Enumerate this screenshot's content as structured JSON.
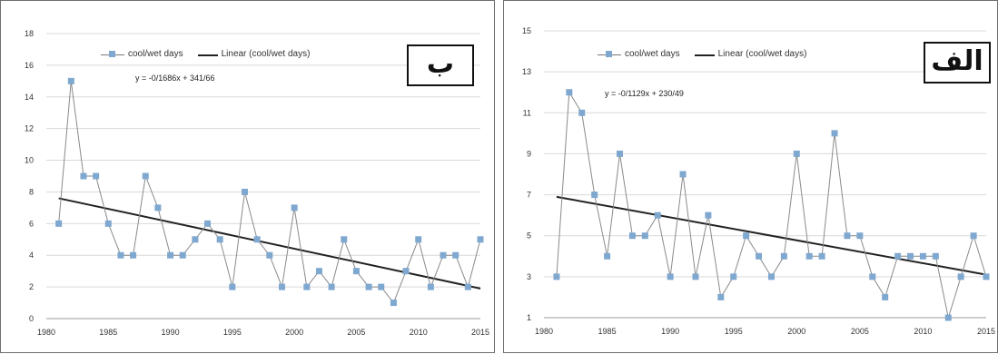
{
  "chart_data": [
    {
      "type": "line",
      "panel_label": "ب",
      "legend": {
        "series_label": "cool/wet days",
        "trend_label": "Linear (cool/wet days)"
      },
      "trendline_equation": "y = -0/1686x + 341/66",
      "xlim": [
        1980,
        2015
      ],
      "ylim": [
        0,
        18
      ],
      "x_ticks": [
        "1980",
        "1985",
        "1990",
        "1995",
        "2000",
        "2005",
        "2010",
        "2015"
      ],
      "y_ticks": [
        "0",
        "2",
        "4",
        "6",
        "8",
        "10",
        "12",
        "14",
        "16",
        "18"
      ],
      "grid": true,
      "series": [
        {
          "x": [
            1981,
            1982,
            1983,
            1984,
            1985,
            1986,
            1987,
            1988,
            1989,
            1990,
            1991,
            1992,
            1993,
            1994,
            1995,
            1996,
            1997,
            1998,
            1999,
            2000,
            2001,
            2002,
            2003,
            2004,
            2005,
            2006,
            2007,
            2008,
            2009,
            2010,
            2011,
            2012,
            2013,
            2014,
            2015
          ],
          "y": [
            6,
            15,
            9,
            9,
            6,
            4,
            4,
            9,
            7,
            4,
            4,
            5,
            6,
            5,
            2,
            8,
            5,
            4,
            2,
            7,
            2,
            3,
            2,
            5,
            3,
            2,
            2,
            1,
            3,
            5,
            2,
            4,
            4,
            2,
            5
          ]
        }
      ],
      "trendline": {
        "x": [
          1981,
          2015
        ],
        "y": [
          7.6,
          1.9
        ]
      },
      "colors": {
        "series": "#7fa8d0",
        "line": "#8a8a8a",
        "trend": "#222222"
      }
    },
    {
      "type": "line",
      "panel_label": "الف",
      "legend": {
        "series_label": "cool/wet days",
        "trend_label": "Linear (cool/wet days)"
      },
      "trendline_equation": "y = -0/1129x + 230/49",
      "xlim": [
        1980,
        2015
      ],
      "ylim": [
        1,
        15
      ],
      "x_ticks": [
        "1980",
        "1985",
        "1990",
        "1995",
        "2000",
        "2005",
        "2010",
        "2015"
      ],
      "y_ticks": [
        "1",
        "3",
        "5",
        "7",
        "9",
        "11",
        "13",
        "15"
      ],
      "grid": true,
      "series": [
        {
          "x": [
            1981,
            1982,
            1983,
            1984,
            1985,
            1986,
            1987,
            1988,
            1989,
            1990,
            1991,
            1992,
            1993,
            1994,
            1995,
            1996,
            1997,
            1998,
            1999,
            2000,
            2001,
            2002,
            2003,
            2004,
            2005,
            2006,
            2007,
            2008,
            2009,
            2010,
            2011,
            2012,
            2013,
            2014,
            2015
          ],
          "y": [
            3,
            12,
            11,
            7,
            4,
            9,
            5,
            5,
            6,
            3,
            8,
            3,
            6,
            2,
            3,
            5,
            4,
            3,
            4,
            9,
            4,
            4,
            10,
            5,
            5,
            3,
            2,
            4,
            4,
            4,
            4,
            1,
            3,
            5,
            3
          ]
        }
      ],
      "trendline": {
        "x": [
          1981,
          2015
        ],
        "y": [
          6.9,
          3.1
        ]
      },
      "colors": {
        "series": "#7fa8d0",
        "line": "#8a8a8a",
        "trend": "#222222"
      }
    }
  ]
}
